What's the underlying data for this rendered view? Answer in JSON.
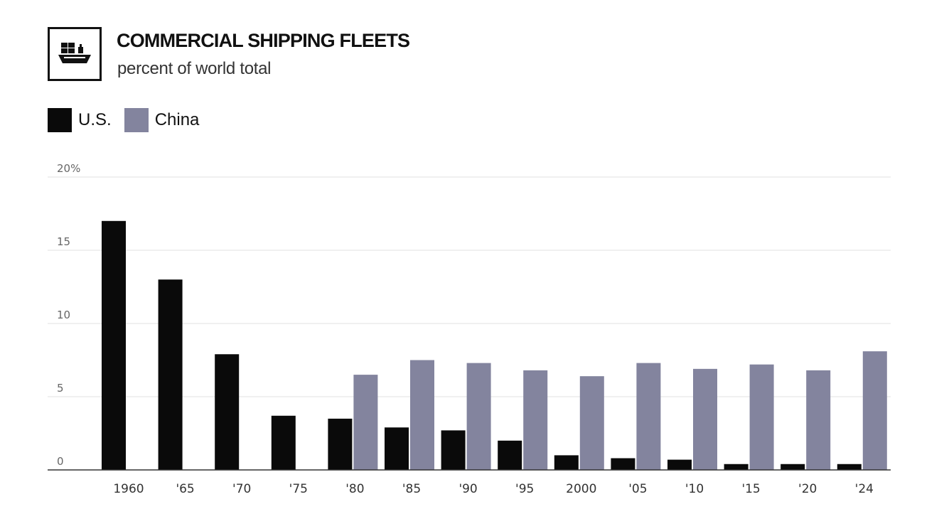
{
  "header": {
    "title": "COMMERCIAL SHIPPING FLEETS",
    "subtitle": "percent of world total",
    "icon": "cargo-ship-icon"
  },
  "colors": {
    "us": "#0a0a0a",
    "china": "#83849e",
    "gridline": "#e2e2e2",
    "baseline": "#333333"
  },
  "chart_data": {
    "type": "bar",
    "title": "COMMERCIAL SHIPPING FLEETS",
    "subtitle": "percent of world total",
    "xlabel": "",
    "ylabel": "",
    "ylim": [
      0,
      20
    ],
    "yticks": [
      "0",
      "5",
      "10",
      "15",
      "20%"
    ],
    "yticks_values": [
      0,
      5,
      10,
      15,
      20
    ],
    "grid": true,
    "legend_position": "top-left",
    "categories": [
      "1960",
      "'65",
      "'70",
      "'75",
      "'80",
      "'85",
      "'90",
      "'95",
      "2000",
      "'05",
      "'10",
      "'15",
      "'20",
      "'24"
    ],
    "series": [
      {
        "name": "U.S.",
        "color": "#0a0a0a",
        "values": [
          17.0,
          13.0,
          7.9,
          3.7,
          3.5,
          2.9,
          2.7,
          2.0,
          1.0,
          0.8,
          0.7,
          0.4,
          0.4,
          0.4
        ]
      },
      {
        "name": "China",
        "color": "#83849e",
        "values": [
          null,
          null,
          null,
          null,
          6.5,
          7.5,
          7.3,
          6.8,
          6.4,
          7.3,
          6.9,
          7.2,
          6.8,
          8.1
        ]
      }
    ]
  }
}
